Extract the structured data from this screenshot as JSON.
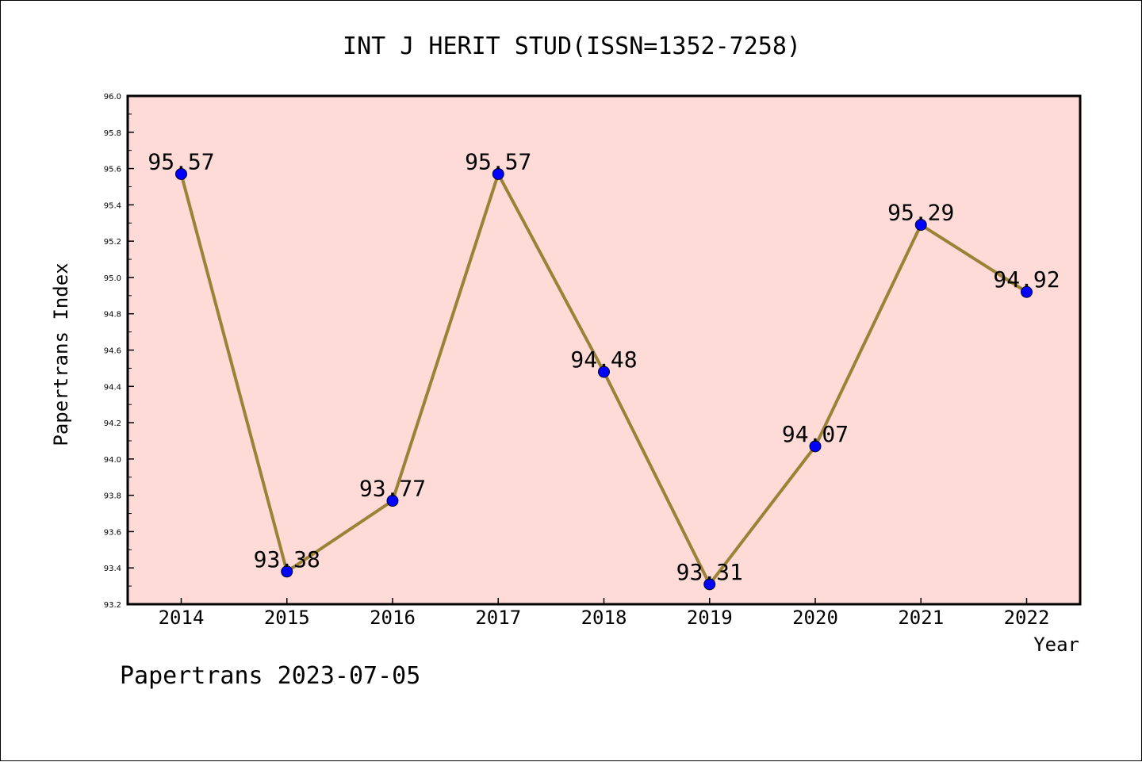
{
  "chart_data": {
    "type": "line",
    "title": "INT J HERIT STUD(ISSN=1352-7258)",
    "xlabel": "Year",
    "ylabel": "Papertrans Index",
    "categories": [
      "2014",
      "2015",
      "2016",
      "2017",
      "2018",
      "2019",
      "2020",
      "2021",
      "2022"
    ],
    "series": [
      {
        "values": [
          95.57,
          93.38,
          93.77,
          95.57,
          94.48,
          93.31,
          94.07,
          95.29,
          94.92
        ],
        "data_labels": [
          "95.57",
          "93.38",
          "93.77",
          "95.57",
          "94.48",
          "93.31",
          "94.07",
          "95.29",
          "94.92"
        ]
      }
    ],
    "ylim": [
      93.2,
      96.0
    ],
    "yticks": [
      "93.2",
      "93.4",
      "93.6",
      "93.8",
      "94.0",
      "94.2",
      "94.4",
      "94.6",
      "94.8",
      "95.0",
      "95.2",
      "95.4",
      "95.6",
      "95.8",
      "96.0"
    ],
    "grid": false,
    "legend": "none",
    "colors": {
      "plot_background": "#FFDBD8",
      "line": "#9B8237",
      "marker": "#0000FF",
      "frame": "#000000"
    }
  },
  "footer": "Papertrans 2023-07-05"
}
